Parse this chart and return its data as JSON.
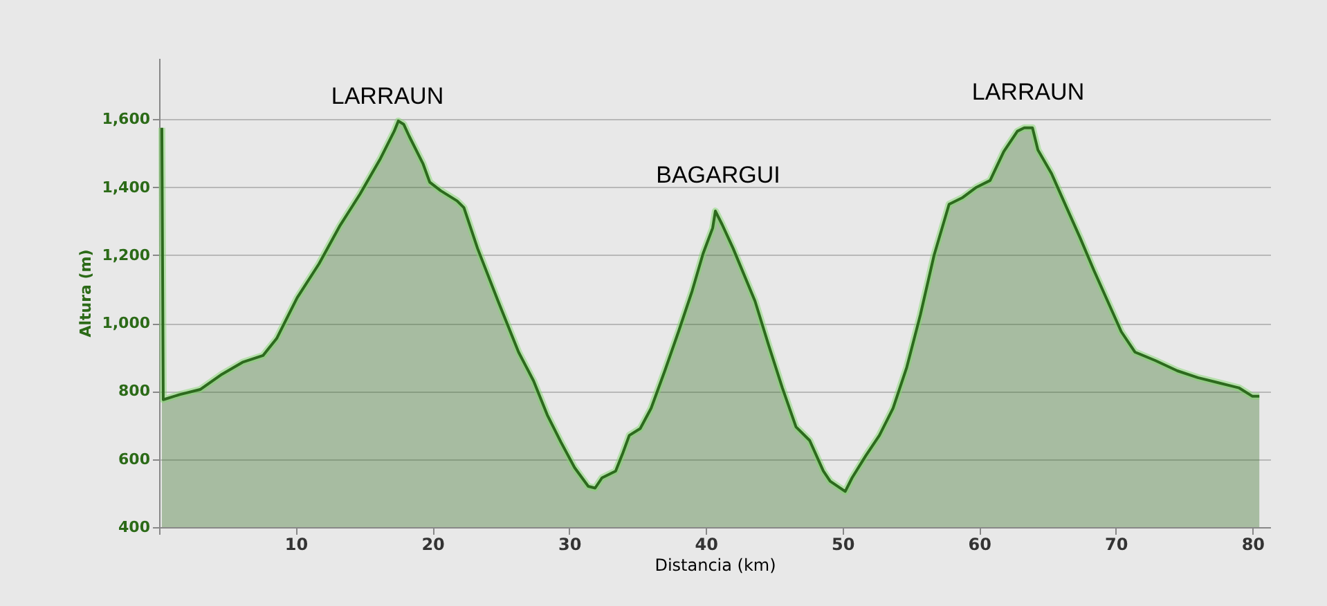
{
  "chart_data": {
    "type": "area",
    "xlabel": "Distancia (km)",
    "ylabel": "Altura (m)",
    "x": [
      0.2,
      0.3,
      1.5,
      3.0,
      4.6,
      6.1,
      7.6,
      8.6,
      9.1,
      10.1,
      11.7,
      13.2,
      14.7,
      16.2,
      17.2,
      17.5,
      17.9,
      18.3,
      19.3,
      19.8,
      20.6,
      21.8,
      22.3,
      23.3,
      24.8,
      26.3,
      27.4,
      28.4,
      29.4,
      30.4,
      31.4,
      31.9,
      32.4,
      33.4,
      33.9,
      34.4,
      35.2,
      36.0,
      37.0,
      38.0,
      39.0,
      39.8,
      40.5,
      40.7,
      41.2,
      42.0,
      43.6,
      44.6,
      45.6,
      46.6,
      47.6,
      48.6,
      49.1,
      50.2,
      50.7,
      51.7,
      52.7,
      53.7,
      54.7,
      55.7,
      56.7,
      57.8,
      58.8,
      59.8,
      60.8,
      61.8,
      62.8,
      63.3,
      63.9,
      64.3,
      65.3,
      66.4,
      67.4,
      68.4,
      69.4,
      70.4,
      71.4,
      72.9,
      74.5,
      76.0,
      77.5,
      79.0,
      80.0,
      80.5
    ],
    "series": [
      {
        "color": "#2d6a1e",
        "values": [
          1575,
          775,
          790,
          805,
          850,
          885,
          905,
          955,
          995,
          1075,
          1175,
          1285,
          1380,
          1485,
          1565,
          1595,
          1585,
          1550,
          1470,
          1415,
          1390,
          1360,
          1340,
          1220,
          1065,
          915,
          830,
          730,
          650,
          575,
          520,
          515,
          545,
          565,
          615,
          670,
          690,
          750,
          860,
          975,
          1095,
          1205,
          1280,
          1330,
          1290,
          1220,
          1065,
          935,
          810,
          695,
          655,
          565,
          535,
          505,
          545,
          610,
          670,
          750,
          870,
          1025,
          1200,
          1350,
          1370,
          1400,
          1420,
          1505,
          1565,
          1575,
          1575,
          1510,
          1440,
          1340,
          1250,
          1155,
          1065,
          975,
          915,
          890,
          860,
          840,
          825,
          810,
          785,
          785
        ]
      }
    ],
    "xlim": [
      0,
      81.3
    ],
    "xticks": [
      {
        "value": 0,
        "label": null
      },
      10,
      20,
      30,
      40,
      50,
      60,
      70,
      80
    ],
    "ylim": [
      400,
      1780
    ],
    "yticks": [
      400,
      600,
      800,
      {
        "value": 1000,
        "label": "1,000"
      },
      {
        "value": 1200,
        "label": "1,200"
      },
      {
        "value": 1400,
        "label": "1,400"
      },
      {
        "value": 1600,
        "label": "1,600"
      }
    ],
    "grid": "y",
    "annotations": [
      "LARRAUN",
      "BAGARGUI",
      "LARRAUN"
    ]
  }
}
